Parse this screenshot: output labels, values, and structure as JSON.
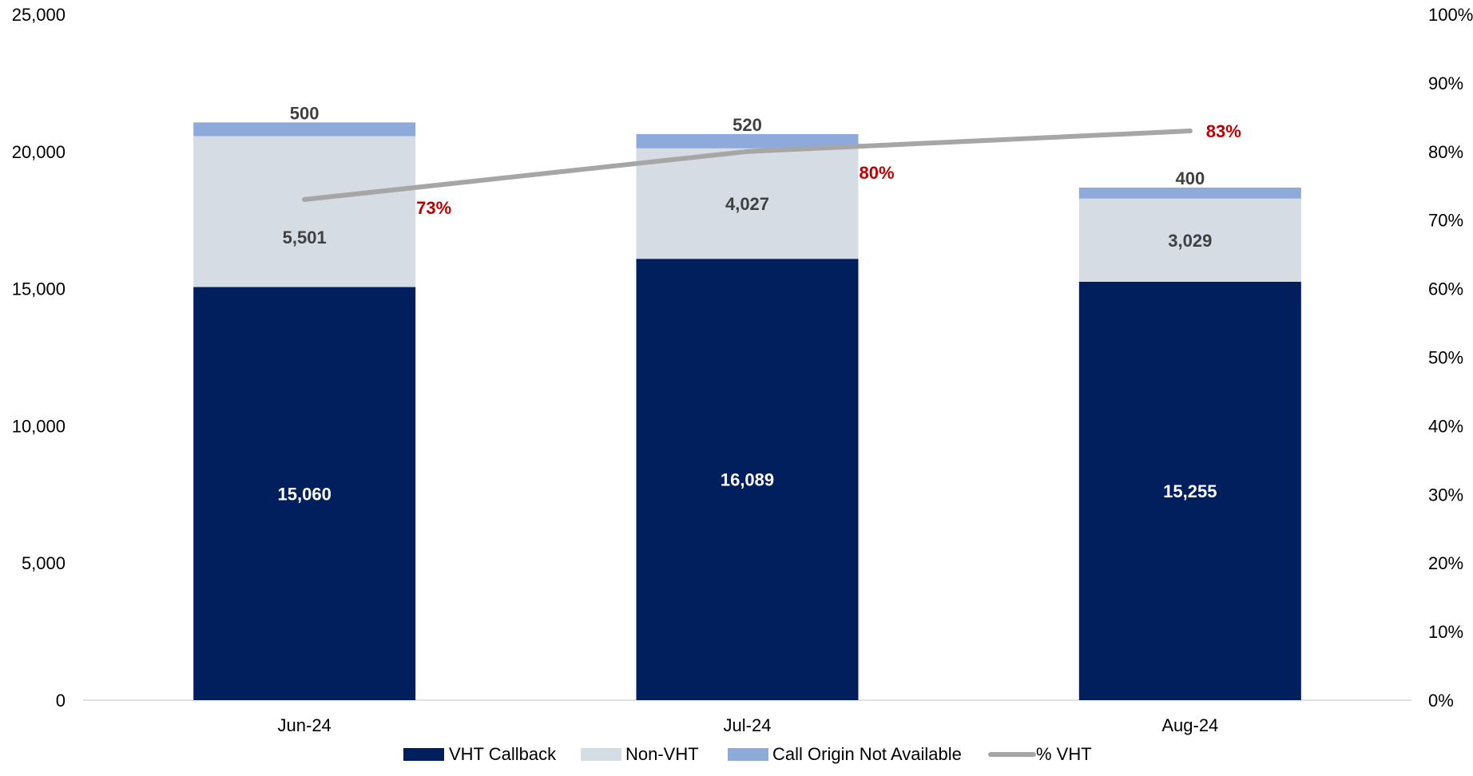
{
  "chart_data": {
    "type": "bar",
    "stacked": true,
    "categories": [
      "Jun-24",
      "Jul-24",
      "Aug-24"
    ],
    "series": [
      {
        "name": "VHT Callback",
        "values": [
          15060,
          16089,
          15255
        ],
        "labels": [
          "15,060",
          "16,089",
          "15,255"
        ],
        "color": "#001f5c"
      },
      {
        "name": "Non-VHT",
        "values": [
          5501,
          4027,
          3029
        ],
        "labels": [
          "5,501",
          "4,027",
          "3,029"
        ],
        "color": "#d6dce4"
      },
      {
        "name": "Call Origin Not Available",
        "values": [
          500,
          520,
          400
        ],
        "labels": [
          "500",
          "520",
          "400"
        ],
        "color": "#8eaadb"
      }
    ],
    "line_series": {
      "name": "% VHT",
      "values": [
        0.73,
        0.8,
        0.83
      ],
      "labels": [
        "73%",
        "80%",
        "83%"
      ],
      "color": "#a6a6a6",
      "label_color": "#c00000",
      "axis": "secondary"
    },
    "y_axis": {
      "min": 0,
      "max": 25000,
      "ticks": [
        0,
        5000,
        10000,
        15000,
        20000,
        25000
      ],
      "tick_labels": [
        "0",
        "5,000",
        "10,000",
        "15,000",
        "20,000",
        "25,000"
      ]
    },
    "y2_axis": {
      "min": 0,
      "max": 1,
      "ticks": [
        0,
        0.1,
        0.2,
        0.3,
        0.4,
        0.5,
        0.6,
        0.7,
        0.8,
        0.9,
        1
      ],
      "tick_labels": [
        "0%",
        "10%",
        "20%",
        "30%",
        "40%",
        "50%",
        "60%",
        "70%",
        "80%",
        "90%",
        "100%"
      ]
    },
    "title": "",
    "xlabel": "",
    "ylabel": "",
    "grid": false,
    "legend_position": "bottom",
    "legend": [
      {
        "label": "VHT Callback",
        "kind": "bar",
        "color": "#001f5c"
      },
      {
        "label": "Non-VHT",
        "kind": "bar",
        "color": "#d6dce4"
      },
      {
        "label": "Call Origin Not Available",
        "kind": "bar",
        "color": "#8eaadb"
      },
      {
        "label": "% VHT",
        "kind": "line",
        "color": "#a6a6a6"
      }
    ]
  }
}
